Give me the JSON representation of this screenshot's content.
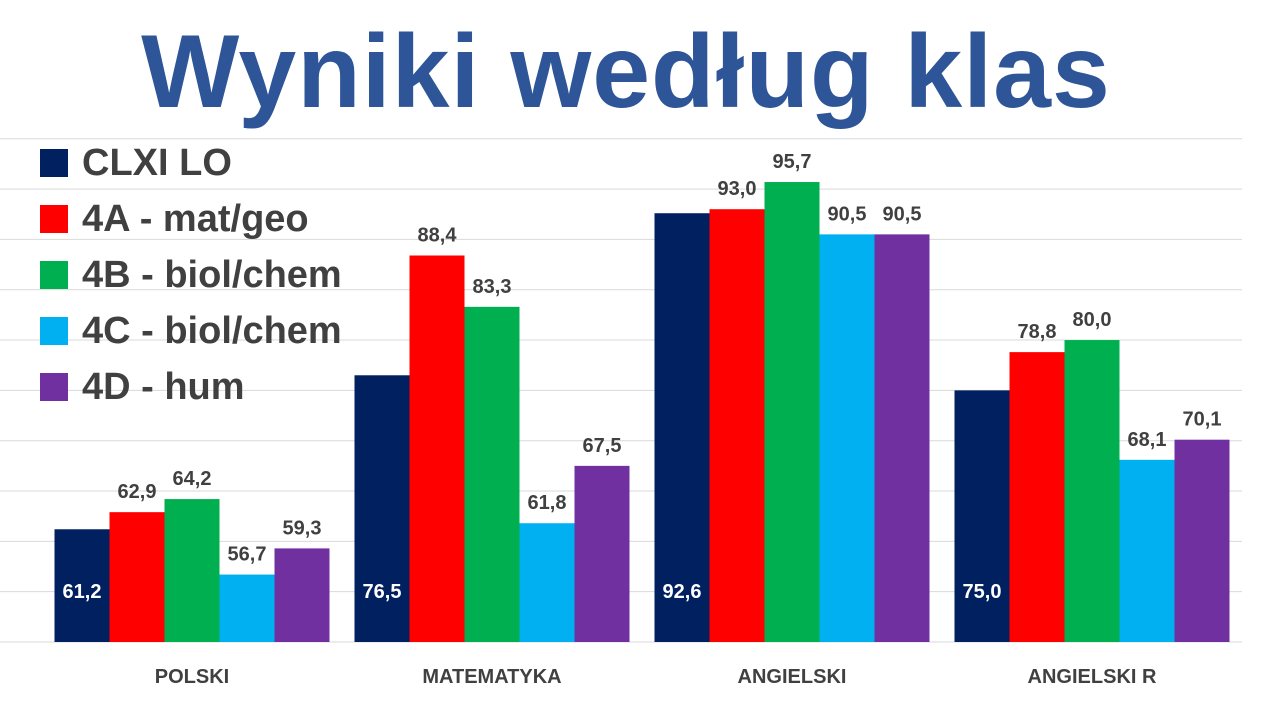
{
  "title": "Wyniki według klas",
  "chart_data": {
    "type": "bar",
    "categories": [
      "POLSKI",
      "MATEMATYKA",
      "ANGIELSKI",
      "ANGIELSKI R"
    ],
    "series": [
      {
        "name": "CLXI LO",
        "color": "#002060",
        "values": [
          61.2,
          76.5,
          92.6,
          75.0
        ]
      },
      {
        "name": "4A - mat/geo",
        "color": "#FF0000",
        "values": [
          62.9,
          88.4,
          93.0,
          78.8
        ]
      },
      {
        "name": "4B - biol/chem",
        "color": "#00B050",
        "values": [
          64.2,
          83.3,
          95.7,
          80.0
        ]
      },
      {
        "name": "4C - biol/chem",
        "color": "#00B0F0",
        "values": [
          56.7,
          61.8,
          90.5,
          68.1
        ]
      },
      {
        "name": "4D - hum",
        "color": "#7030A0",
        "values": [
          59.3,
          67.5,
          90.5,
          70.1
        ]
      }
    ],
    "data_labels": [
      [
        "61,2",
        "76,5",
        "92,6",
        "75,0"
      ],
      [
        "62,9",
        "88,4",
        "93,0",
        "78,8"
      ],
      [
        "64,2",
        "83,3",
        "95,7",
        "80,0"
      ],
      [
        "56,7",
        "61,8",
        "90,5",
        "68,1"
      ],
      [
        "59,3",
        "67,5",
        "90,5",
        "70,1"
      ]
    ],
    "ylim": [
      50,
      100
    ],
    "grid": true,
    "legend": "top-left"
  }
}
